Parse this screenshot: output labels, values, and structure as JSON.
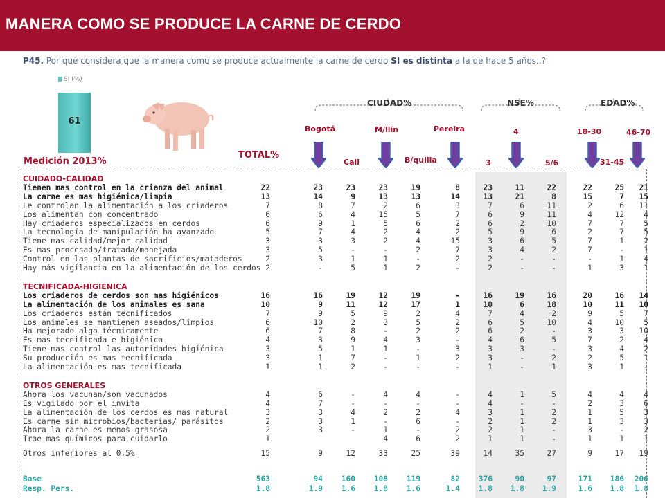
{
  "title": "MANERA COMO SE PRODUCE LA CARNE DE CERDO",
  "question": {
    "num": "P45.",
    "text_a": " Por qué considera que la manera como se produce actualmente la carne de cerdo ",
    "bold": "SI es distinta",
    "text_b": " a la de hace 5 años..?"
  },
  "legend": "SI (%)",
  "bar_value": "61",
  "medicion": "Medición 2013%",
  "total_label": "TOTAL%",
  "groups": {
    "ciudad": "CIUDAD%",
    "nse": "NSE%",
    "edad": "EDAD%"
  },
  "subheads": {
    "bogota": "Bogotá",
    "cali": "Cali",
    "medellin": "M/llín",
    "barranquilla": "B/quilla",
    "pereira": "Pereira",
    "nse3": "3",
    "nse4": "4",
    "nse56": "5/6",
    "e1830": "18-30",
    "e3145": "31-45",
    "e4670": "46-70"
  },
  "colors": {
    "brand": "#a3112e",
    "teal": "#2aa5a5",
    "arrow": "#8e44ad"
  },
  "sections": [
    {
      "title": "CUIDADO-CALIDAD",
      "rows": [
        {
          "label": "Tienen mas control en la crianza del animal",
          "bold": true,
          "values": [
            "22",
            "23",
            "23",
            "23",
            "19",
            "8",
            "23",
            "11",
            "22",
            "22",
            "25",
            "21"
          ]
        },
        {
          "label": "La carne es mas higiénica/limpia",
          "bold": true,
          "values": [
            "13",
            "14",
            "9",
            "13",
            "13",
            "14",
            "13",
            "21",
            "8",
            "15",
            "7",
            "15"
          ]
        },
        {
          "label": "Le controlan la alimentación a los criaderos",
          "values": [
            "7",
            "8",
            "7",
            "2",
            "6",
            "3",
            "7",
            "6",
            "11",
            "2",
            "6",
            "11"
          ]
        },
        {
          "label": "Los alimentan con concentrado",
          "values": [
            "6",
            "6",
            "4",
            "15",
            "5",
            "7",
            "6",
            "9",
            "11",
            "4",
            "12",
            "4"
          ]
        },
        {
          "label": "Hay criaderos especializados en cerdos",
          "values": [
            "6",
            "9",
            "1",
            "5",
            "6",
            "2",
            "6",
            "2",
            "10",
            "7",
            "7",
            "5"
          ]
        },
        {
          "label": "La tecnología de manipulación ha avanzado",
          "values": [
            "5",
            "7",
            "4",
            "2",
            "4",
            "2",
            "5",
            "9",
            "6",
            "2",
            "7",
            "5"
          ]
        },
        {
          "label": "Tiene mas calidad/mejor calidad",
          "values": [
            "3",
            "3",
            "3",
            "2",
            "4",
            "15",
            "3",
            "6",
            "5",
            "7",
            "1",
            "2"
          ]
        },
        {
          "label": "Es mas procesada/tratada/manejada",
          "values": [
            "3",
            "5",
            "-",
            "-",
            "2",
            "7",
            "3",
            "4",
            "2",
            "7",
            "-",
            "1"
          ]
        },
        {
          "label": "Control en las plantas de sacrificios/mataderos",
          "values": [
            "2",
            "3",
            "1",
            "1",
            "-",
            "2",
            "2",
            "-",
            "-",
            "-",
            "1",
            "4"
          ]
        },
        {
          "label": "Hay más vigilancia en la alimentación de los cerdos",
          "values": [
            "2",
            "-",
            "5",
            "1",
            "2",
            "-",
            "2",
            "-",
            "-",
            "1",
            "3",
            "1"
          ]
        }
      ]
    },
    {
      "title": "TECNIFICADA-HIGIENICA",
      "rows": [
        {
          "label": "Los criaderos de cerdos son mas higiénicos",
          "bold": true,
          "values": [
            "16",
            "16",
            "19",
            "12",
            "19",
            "-",
            "16",
            "19",
            "16",
            "20",
            "16",
            "14"
          ]
        },
        {
          "label": "La alimentación de los animales es sana",
          "bold": true,
          "values": [
            "10",
            "9",
            "11",
            "12",
            "17",
            "1",
            "10",
            "6",
            "18",
            "10",
            "11",
            "10"
          ]
        },
        {
          "label": "Los criaderos están tecnificados",
          "values": [
            "7",
            "9",
            "5",
            "9",
            "2",
            "4",
            "7",
            "4",
            "2",
            "9",
            "5",
            "7"
          ]
        },
        {
          "label": "Los animales se mantienen aseados/limpios",
          "values": [
            "6",
            "10",
            "2",
            "3",
            "5",
            "2",
            "6",
            "5",
            "10",
            "4",
            "10",
            "5"
          ]
        },
        {
          "label": "Ha mejorado algo técnicamente",
          "values": [
            "6",
            "7",
            "8",
            "-",
            "2",
            "2",
            "6",
            "2",
            "-",
            "3",
            "3",
            "10"
          ]
        },
        {
          "label": "Es mas tecnificada e higiénica",
          "values": [
            "4",
            "3",
            "9",
            "4",
            "3",
            "-",
            "4",
            "6",
            "5",
            "7",
            "2",
            "4"
          ]
        },
        {
          "label": "Tiene mas control las autoridades higiénica",
          "values": [
            "3",
            "5",
            "1",
            "1",
            "-",
            "3",
            "3",
            "3",
            "-",
            "3",
            "4",
            "2"
          ]
        },
        {
          "label": "Su producción es mas tecnificada",
          "values": [
            "3",
            "1",
            "7",
            "-",
            "1",
            "2",
            "3",
            "-",
            "2",
            "2",
            "5",
            "1"
          ]
        },
        {
          "label": "La alimentación es mas tecnificada",
          "values": [
            "1",
            "1",
            "2",
            "-",
            "-",
            "-",
            "1",
            "-",
            "1",
            "3",
            "1",
            "-"
          ]
        }
      ]
    },
    {
      "title": "OTROS GENERALES",
      "rows": [
        {
          "label": "Ahora los vacunan/son vacunados",
          "values": [
            "4",
            "6",
            "-",
            "4",
            "4",
            "-",
            "4",
            "1",
            "5",
            "4",
            "4",
            "4"
          ]
        },
        {
          "label": "Es vigilado por el invita",
          "values": [
            "4",
            "7",
            "-",
            "-",
            "-",
            "-",
            "4",
            "-",
            "-",
            "2",
            "3",
            "6"
          ]
        },
        {
          "label": "La alimentación de los cerdos es mas natural",
          "values": [
            "3",
            "3",
            "4",
            "2",
            "2",
            "4",
            "3",
            "1",
            "2",
            "1",
            "5",
            "3"
          ]
        },
        {
          "label": "Es carne sin microbios/bacterias/ parásitos",
          "values": [
            "2",
            "3",
            "1",
            "-",
            "6",
            "-",
            "2",
            "1",
            "2",
            "1",
            "3",
            "3"
          ]
        },
        {
          "label": "Ahora la carne es menos grasosa",
          "values": [
            "2",
            "3",
            "-",
            "1",
            "-",
            "2",
            "2",
            "1",
            "-",
            "3",
            "-",
            "2"
          ]
        },
        {
          "label": "Trae mas químicos para cuidarlo",
          "values": [
            "1",
            "",
            "",
            "4",
            "6",
            "2",
            "1",
            "1",
            "-",
            "1",
            "1",
            "1"
          ]
        }
      ]
    }
  ],
  "otros": {
    "label": "Otros inferiores al 0.5%",
    "values": [
      "15",
      "9",
      "12",
      "33",
      "25",
      "39",
      "14",
      "35",
      "27",
      "9",
      "17",
      "19"
    ]
  },
  "base": {
    "label": "Base",
    "values": [
      "563",
      "94",
      "160",
      "108",
      "119",
      "82",
      "376",
      "90",
      "97",
      "171",
      "186",
      "206"
    ]
  },
  "resp": {
    "label": "Resp. Pers.",
    "values": [
      "1.8",
      "1.9",
      "1.6",
      "1.8",
      "1.6",
      "1.4",
      "1.8",
      "1.8",
      "1.9",
      "1.6",
      "1.8",
      "1.8"
    ]
  }
}
